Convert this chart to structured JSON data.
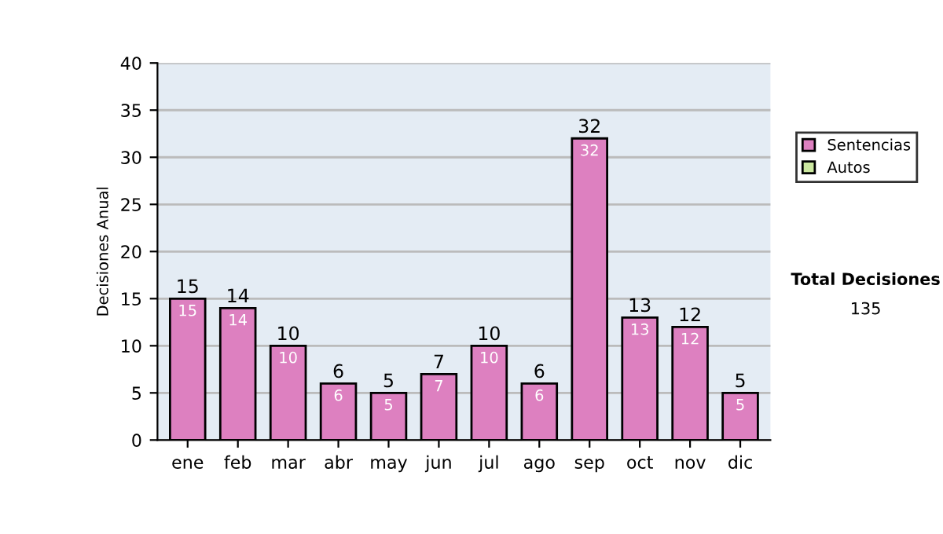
{
  "chart_data": {
    "type": "bar",
    "stacked": true,
    "ylabel": "Decisiones Anual",
    "categories": [
      "ene",
      "feb",
      "mar",
      "abr",
      "may",
      "jun",
      "jul",
      "ago",
      "sep",
      "oct",
      "nov",
      "dic"
    ],
    "series": [
      {
        "name": "Sentencias",
        "color": "#dd80c0",
        "values": [
          15,
          14,
          10,
          6,
          5,
          7,
          10,
          6,
          32,
          13,
          12,
          5
        ],
        "value_labels": [
          "15",
          "14",
          "10",
          "6",
          "5",
          "7",
          "10",
          "6",
          "32",
          "13",
          "12",
          "5"
        ]
      },
      {
        "name": "Autos",
        "color": "#cce8a0",
        "values": [
          0,
          0,
          0,
          0,
          0,
          0,
          0,
          0,
          0,
          0,
          0,
          0
        ]
      }
    ],
    "totals": [
      "15",
      "14",
      "10",
      "6",
      "5",
      "7",
      "10",
      "6",
      "32",
      "13",
      "12",
      "5"
    ],
    "ylim": [
      0,
      40
    ],
    "yticks": [
      0,
      5,
      10,
      15,
      20,
      25,
      30,
      35,
      40
    ],
    "grid": "y",
    "legend": "right",
    "annotations": [
      "Total Decisiones",
      "135"
    ]
  }
}
